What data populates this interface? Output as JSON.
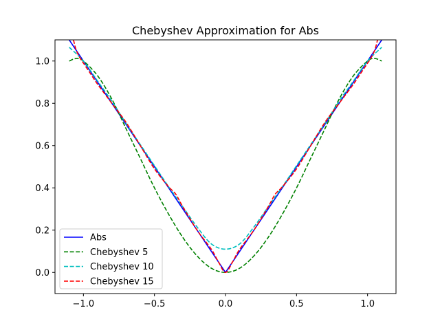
{
  "chart_data": {
    "type": "line",
    "title": "Chebyshev Approximation for Abs",
    "xlabel": "",
    "ylabel": "",
    "xlim": [
      -1.2,
      1.2
    ],
    "ylim": [
      -0.1,
      1.1
    ],
    "xticks": [
      -1.0,
      -0.5,
      0.0,
      0.5,
      1.0
    ],
    "xtick_labels": [
      "−1.0",
      "−0.5",
      "0.0",
      "0.5",
      "1.0"
    ],
    "yticks": [
      0.0,
      0.2,
      0.4,
      0.6,
      0.8,
      1.0
    ],
    "ytick_labels": [
      "0.0",
      "0.2",
      "0.4",
      "0.6",
      "0.8",
      "1.0"
    ],
    "grid": false,
    "legend_position": "lower-left",
    "series": [
      {
        "name": "Abs",
        "color": "#0000ff",
        "style": "solid",
        "x": [
          -1.1,
          0.0,
          1.1
        ],
        "y": [
          1.1,
          0.0,
          1.1
        ]
      },
      {
        "name": "Chebyshev 5",
        "color": "#008000",
        "style": "dashed",
        "x": [
          -1.1,
          -1.05,
          -1.0,
          -0.9,
          -0.8,
          -0.7,
          -0.6,
          -0.5,
          -0.4,
          -0.3,
          -0.2,
          -0.1,
          0.0,
          0.1,
          0.2,
          0.3,
          0.4,
          0.5,
          0.6,
          0.7,
          0.8,
          0.9,
          1.0,
          1.05,
          1.1
        ],
        "y": [
          1.0,
          1.012,
          1.0,
          0.93,
          0.82,
          0.68,
          0.54,
          0.4,
          0.275,
          0.165,
          0.078,
          0.02,
          0.0,
          0.02,
          0.078,
          0.165,
          0.275,
          0.4,
          0.54,
          0.68,
          0.82,
          0.93,
          1.0,
          1.012,
          1.0
        ]
      },
      {
        "name": "Chebyshev 10",
        "color": "#00bfbf",
        "style": "dashed",
        "x": [
          -1.1,
          -1.0,
          -0.9,
          -0.8,
          -0.7,
          -0.6,
          -0.5,
          -0.4,
          -0.3,
          -0.2,
          -0.1,
          0.0,
          0.1,
          0.2,
          0.3,
          0.4,
          0.5,
          0.6,
          0.7,
          0.8,
          0.9,
          1.0,
          1.1
        ],
        "y": [
          1.065,
          1.0,
          0.905,
          0.81,
          0.705,
          0.605,
          0.505,
          0.405,
          0.31,
          0.215,
          0.135,
          0.11,
          0.135,
          0.215,
          0.31,
          0.405,
          0.505,
          0.605,
          0.705,
          0.81,
          0.905,
          1.0,
          1.065
        ]
      },
      {
        "name": "Chebyshev 15",
        "color": "#ff0000",
        "style": "dashed",
        "x": [
          -1.07,
          -1.05,
          -1.02,
          -1.0,
          -0.95,
          -0.9,
          -0.8,
          -0.7,
          -0.6,
          -0.5,
          -0.4,
          -0.35,
          -0.3,
          -0.2,
          -0.1,
          -0.05,
          0.0,
          0.05,
          0.1,
          0.2,
          0.3,
          0.35,
          0.4,
          0.5,
          0.6,
          0.7,
          0.8,
          0.9,
          0.95,
          1.0,
          1.02,
          1.05,
          1.07
        ],
        "y": [
          1.1,
          1.05,
          1.01,
          0.99,
          0.94,
          0.89,
          0.8,
          0.71,
          0.6,
          0.49,
          0.405,
          0.37,
          0.31,
          0.2,
          0.11,
          0.05,
          0.0,
          0.05,
          0.11,
          0.2,
          0.31,
          0.37,
          0.405,
          0.49,
          0.6,
          0.71,
          0.8,
          0.89,
          0.94,
          0.99,
          1.01,
          1.05,
          1.1
        ]
      }
    ]
  }
}
